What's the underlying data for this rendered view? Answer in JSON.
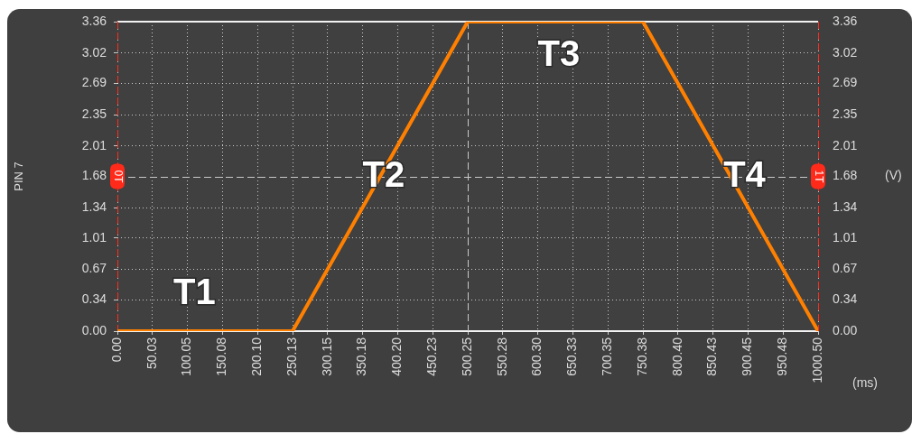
{
  "chart_data": {
    "type": "line",
    "x": [
      0,
      250.13,
      500.25,
      750.38,
      1000.5
    ],
    "series": [
      {
        "color": "#ff8000",
        "values": [
          0,
          0,
          3.36,
          3.36,
          0
        ]
      }
    ],
    "xlim": [
      0,
      1000.5
    ],
    "xticks": [
      {
        "value": 0,
        "label": "0.00"
      },
      {
        "value": 50.03,
        "label": "50.03"
      },
      {
        "value": 100.05,
        "label": "100.05"
      },
      {
        "value": 150.08,
        "label": "150.08"
      },
      {
        "value": 200.1,
        "label": "200.10"
      },
      {
        "value": 250.13,
        "label": "250.13"
      },
      {
        "value": 300.15,
        "label": "300.15"
      },
      {
        "value": 350.18,
        "label": "350.18"
      },
      {
        "value": 400.2,
        "label": "400.20"
      },
      {
        "value": 450.23,
        "label": "450.23"
      },
      {
        "value": 500.25,
        "label": "500.25"
      },
      {
        "value": 550.28,
        "label": "550.28"
      },
      {
        "value": 600.3,
        "label": "600.30"
      },
      {
        "value": 650.33,
        "label": "650.33"
      },
      {
        "value": 700.35,
        "label": "700.35"
      },
      {
        "value": 750.38,
        "label": "750.38"
      },
      {
        "value": 800.4,
        "label": "800.40"
      },
      {
        "value": 850.43,
        "label": "850.43"
      },
      {
        "value": 900.45,
        "label": "900.45"
      },
      {
        "value": 950.48,
        "label": "950.48"
      },
      {
        "value": 1000.5,
        "label": "1000.50"
      }
    ],
    "ylim": [
      0,
      3.36
    ],
    "yticks": [
      {
        "value": 0,
        "label": "0.00"
      },
      0.34,
      0.67,
      1.01,
      1.34,
      1.68,
      2.01,
      2.35,
      2.69,
      3.02,
      3.36
    ],
    "y2lim": [
      0,
      3.36
    ],
    "y2ticks": [
      {
        "value": 0,
        "label": "0.00"
      },
      0.34,
      0.67,
      1.01,
      1.34,
      1.68,
      2.01,
      2.35,
      2.69,
      3.02,
      3.36
    ],
    "xlabel": "(ms)",
    "ylabel": "PIN 7",
    "y2label": "(V)",
    "annotations": [
      "T1",
      "T2",
      "T3",
      "T4"
    ],
    "ref_lines": [
      {
        "axis": "x",
        "value": 0,
        "label": "0T",
        "color": "#ff2a1a",
        "line_style": "dashed"
      },
      {
        "axis": "x",
        "value": 1000.5,
        "label": "1T",
        "color": "#ff2a1a",
        "line_style": "dashed"
      }
    ],
    "grid": true,
    "legend": false,
    "marker": "none",
    "line_style": "solid"
  }
}
